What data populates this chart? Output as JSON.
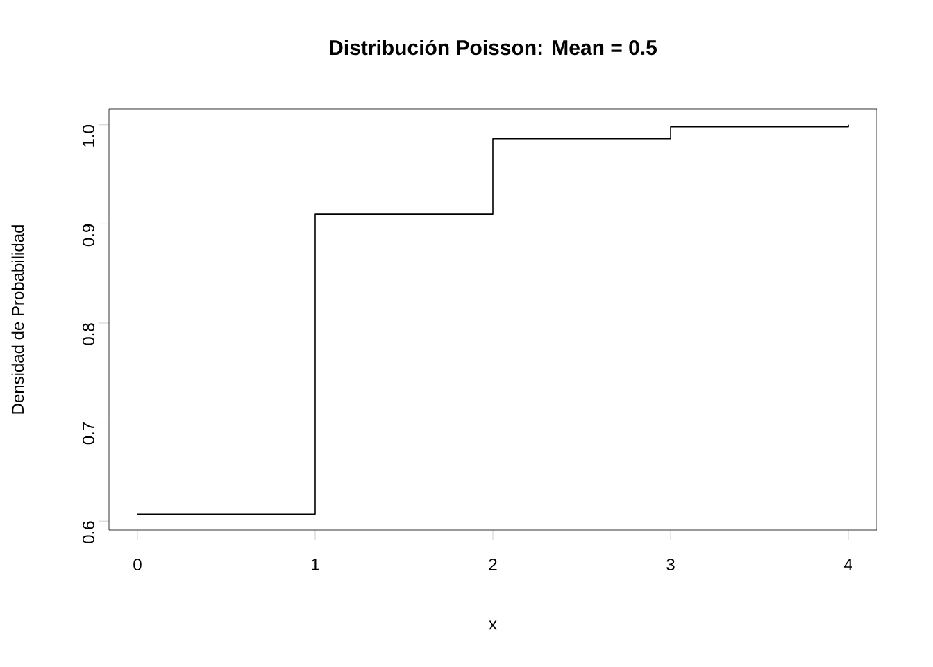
{
  "chart_data": {
    "type": "step",
    "title": "Distribución Poisson: Mean = 0.5",
    "xlabel": "x",
    "ylabel": "Densidad de Probabilidad",
    "x": [
      0,
      1,
      2,
      3,
      4
    ],
    "values": [
      0.607,
      0.91,
      0.986,
      0.998,
      1.0
    ],
    "color": "#000000",
    "xlim": [
      -0.16,
      4.16
    ],
    "ylim": [
      0.591,
      1.016
    ],
    "xticks": [
      0,
      1,
      2,
      3,
      4
    ],
    "yticks": [
      {
        "value": 0.6,
        "label": "0.6"
      },
      {
        "value": 0.7,
        "label": "0.7"
      },
      {
        "value": 0.8,
        "label": "0.8"
      },
      {
        "value": 0.9,
        "label": "0.9"
      },
      {
        "value": 1.0,
        "label": "1.0"
      }
    ],
    "grid": false
  }
}
